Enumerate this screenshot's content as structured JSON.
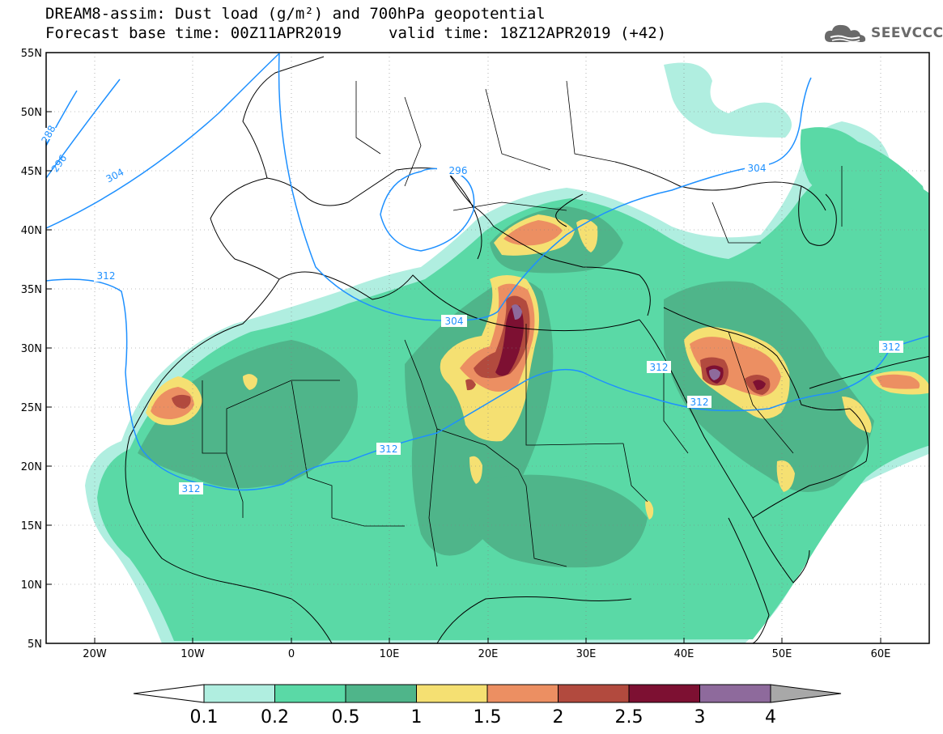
{
  "title": {
    "line1": "DREAM8-assim: Dust load (g/m²) and 700hPa geopotential",
    "line2_left": "Forecast base time: 00Z11APR2019",
    "line2_right": "valid time: 18Z12APR2019 (+42)"
  },
  "logo": {
    "text": "SEEVCCC",
    "icon": "cloud-logo-icon"
  },
  "map": {
    "lon_labels": [
      "20W",
      "10W",
      "0",
      "10E",
      "20E",
      "30E",
      "40E",
      "50E",
      "60E"
    ],
    "lat_labels": [
      "55N",
      "50N",
      "45N",
      "40N",
      "35N",
      "30N",
      "25N",
      "20N",
      "15N",
      "10N",
      "5N"
    ],
    "contour_labels": [
      "288",
      "296",
      "304",
      "296",
      "312",
      "304",
      "312",
      "312",
      "312",
      "312",
      "304",
      "312"
    ],
    "colors": {
      "c0": "#b0eee0",
      "c1": "#5ad9a6",
      "c2": "#4fb58a",
      "c3": "#f5e072",
      "c4": "#ec8f62",
      "c5": "#b24a3e",
      "c6": "#7d1032",
      "c7": "#8e6a9c",
      "contour": "#1e90ff"
    }
  },
  "colorbar": {
    "labels": [
      "0.1",
      "0.2",
      "0.5",
      "1",
      "1.5",
      "2",
      "2.5",
      "3",
      "4"
    ],
    "colors": [
      "#b0eee0",
      "#5ad9a6",
      "#4fb58a",
      "#f5e072",
      "#ec8f62",
      "#b24a3e",
      "#7d1032",
      "#8e6a9c"
    ],
    "under_color": "#ffffff",
    "over_color": "#a8a8a8"
  }
}
